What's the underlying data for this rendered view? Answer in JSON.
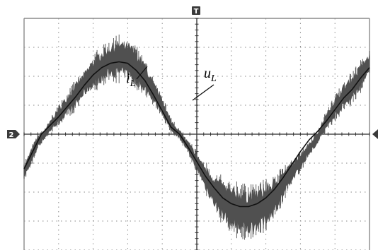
{
  "chart_data": {
    "type": "line",
    "title": "",
    "xlabel": "",
    "ylabel": "",
    "xlim": [
      0,
      10
    ],
    "ylim": [
      -4,
      4
    ],
    "grid": true,
    "grid_divisions": {
      "x": 10,
      "y": 8
    },
    "colors": {
      "grid": "#8a8a8a",
      "current_band": "#505050",
      "voltage_line": "#111111",
      "marker": "#3a3a3a"
    },
    "markers": {
      "trigger": "T",
      "channel": "2"
    },
    "series": [
      {
        "name": "i_L",
        "label_main": "i",
        "label_sub": "L",
        "style": "noisy-band",
        "x": [
          0.0,
          0.2,
          0.4,
          0.6,
          0.8,
          1.0,
          1.25,
          1.5,
          1.75,
          2.0,
          2.25,
          2.5,
          2.75,
          3.0,
          3.25,
          3.5,
          3.75,
          4.0,
          4.25,
          4.5,
          4.75,
          5.0,
          5.25,
          5.5,
          5.75,
          6.0,
          6.25,
          6.5,
          6.75,
          7.0,
          7.25,
          7.5,
          7.75,
          8.0,
          8.25,
          8.5,
          8.75,
          9.0,
          9.25,
          9.5,
          9.75,
          10.0
        ],
        "y": [
          -1.3,
          -0.8,
          -0.25,
          0.0,
          0.35,
          0.65,
          1.0,
          1.35,
          1.75,
          2.1,
          2.35,
          2.55,
          2.6,
          2.55,
          2.3,
          1.95,
          1.45,
          0.95,
          0.3,
          0.0,
          -0.45,
          -0.95,
          -1.5,
          -1.95,
          -2.3,
          -2.55,
          -2.65,
          -2.7,
          -2.6,
          -2.45,
          -2.15,
          -1.75,
          -1.3,
          -0.95,
          -0.5,
          -0.1,
          0.45,
          0.9,
          1.3,
          1.6,
          2.0,
          2.5
        ],
        "band_halfwidth": [
          0.15,
          0.2,
          0.15,
          0.1,
          0.15,
          0.2,
          0.25,
          0.3,
          0.3,
          0.35,
          0.4,
          0.4,
          0.45,
          0.45,
          0.45,
          0.35,
          0.25,
          0.2,
          0.15,
          0.1,
          0.15,
          0.2,
          0.3,
          0.4,
          0.45,
          0.5,
          0.55,
          0.55,
          0.5,
          0.5,
          0.45,
          0.35,
          0.25,
          0.2,
          0.15,
          0.15,
          0.2,
          0.25,
          0.3,
          0.3,
          0.3,
          0.2
        ]
      },
      {
        "name": "u_L",
        "label_main": "u",
        "label_sub": "L",
        "style": "line",
        "x": [
          0.0,
          0.25,
          0.5,
          0.75,
          1.0,
          1.25,
          1.5,
          1.75,
          2.0,
          2.25,
          2.5,
          2.75,
          3.0,
          3.25,
          3.5,
          3.75,
          4.0,
          4.25,
          4.5,
          4.75,
          5.0,
          5.25,
          5.5,
          5.75,
          6.0,
          6.25,
          6.5,
          6.75,
          7.0,
          7.25,
          7.5,
          7.75,
          8.0,
          8.25,
          8.5,
          8.75,
          9.0,
          9.25,
          9.5,
          9.75,
          10.0
        ],
        "y": [
          -1.2,
          -0.6,
          0.0,
          0.3,
          0.6,
          0.95,
          1.3,
          1.7,
          2.05,
          2.3,
          2.45,
          2.5,
          2.45,
          2.2,
          1.85,
          1.35,
          0.8,
          0.25,
          0.0,
          -0.45,
          -0.95,
          -1.45,
          -1.85,
          -2.2,
          -2.4,
          -2.5,
          -2.5,
          -2.4,
          -2.2,
          -1.9,
          -1.5,
          -1.05,
          -0.6,
          -0.2,
          0.1,
          0.45,
          0.85,
          1.25,
          1.55,
          1.95,
          2.3
        ]
      }
    ]
  }
}
